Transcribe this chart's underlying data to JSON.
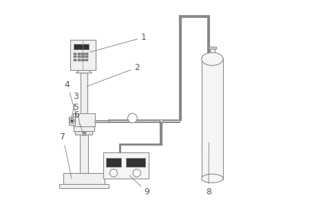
{
  "bg_color": "#ffffff",
  "line_color": "#888888",
  "dark_line": "#555555",
  "label_color": "#555555",
  "label_fontsize": 9
}
